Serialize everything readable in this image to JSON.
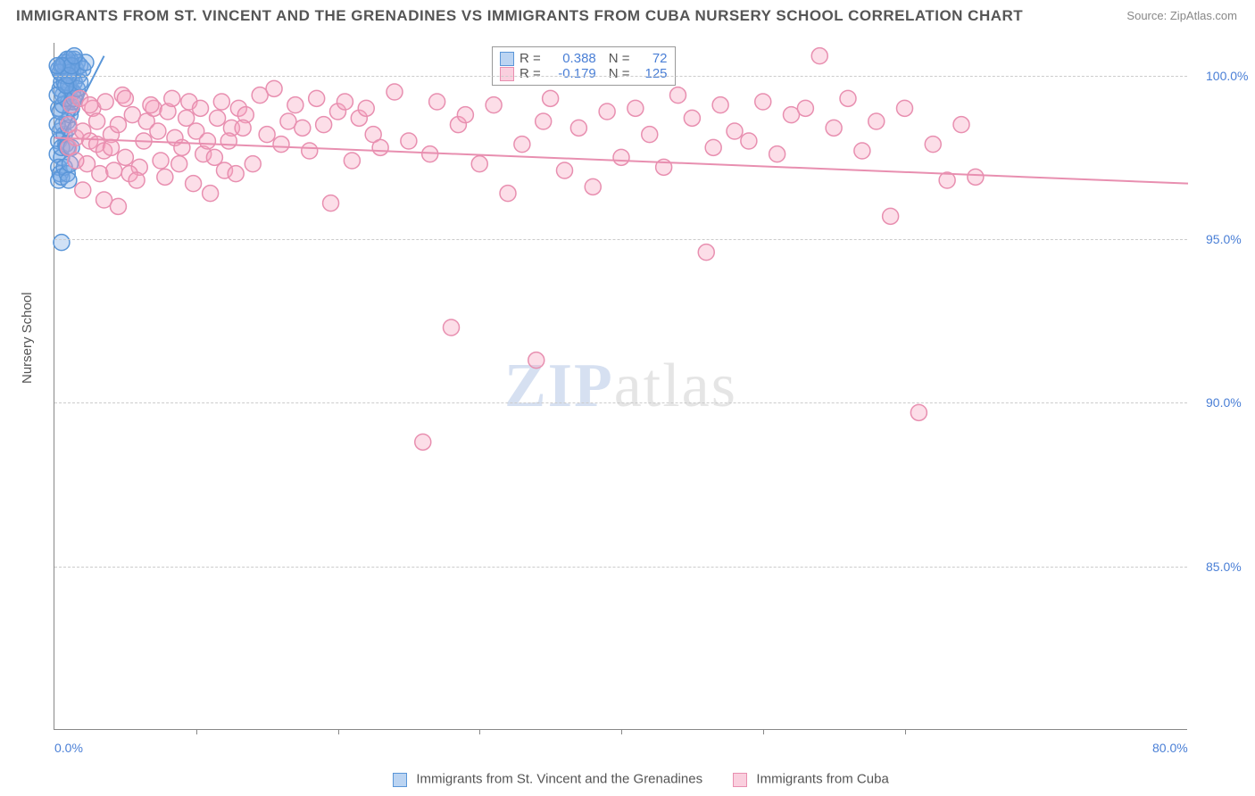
{
  "title": "IMMIGRANTS FROM ST. VINCENT AND THE GRENADINES VS IMMIGRANTS FROM CUBA NURSERY SCHOOL CORRELATION CHART",
  "source_label": "Source:",
  "source_value": "ZipAtlas.com",
  "ylabel": "Nursery School",
  "watermark": {
    "zip": "ZIP",
    "rest": "atlas"
  },
  "chart": {
    "type": "scatter",
    "background_color": "#ffffff",
    "grid_color": "#cccccc",
    "axis_color": "#888888",
    "xlim": [
      0,
      80
    ],
    "ylim": [
      80,
      101
    ],
    "xticks": [
      0,
      80
    ],
    "xtick_labels": [
      "0.0%",
      "80.0%"
    ],
    "xtick_marks": [
      10,
      20,
      30,
      40,
      50,
      60
    ],
    "yticks": [
      85,
      90,
      95,
      100
    ],
    "ytick_labels": [
      "85.0%",
      "90.0%",
      "95.0%",
      "100.0%"
    ],
    "marker_radius": 9,
    "marker_stroke_width": 1.5,
    "trend_line_width": 2
  },
  "series": [
    {
      "id": "svg",
      "label": "Immigrants from St. Vincent and the Grenadines",
      "fill_color": "rgba(120,170,230,0.35)",
      "stroke_color": "#5a96d8",
      "R": "0.388",
      "N": "72",
      "trend": {
        "x1": 0.2,
        "y1": 97.8,
        "x2": 3.5,
        "y2": 100.6
      },
      "points": [
        [
          0.2,
          97.6
        ],
        [
          0.3,
          98.0
        ],
        [
          0.4,
          98.3
        ],
        [
          0.5,
          97.5
        ],
        [
          0.3,
          99.0
        ],
        [
          0.6,
          99.4
        ],
        [
          0.7,
          100.0
        ],
        [
          0.8,
          100.2
        ],
        [
          0.9,
          100.4
        ],
        [
          1.0,
          100.3
        ],
        [
          1.1,
          100.5
        ],
        [
          1.2,
          100.4
        ],
        [
          0.4,
          99.6
        ],
        [
          0.5,
          99.8
        ],
        [
          0.6,
          98.5
        ],
        [
          0.7,
          98.2
        ],
        [
          0.8,
          97.9
        ],
        [
          0.9,
          98.6
        ],
        [
          1.0,
          99.2
        ],
        [
          1.1,
          99.6
        ],
        [
          1.2,
          99.0
        ],
        [
          1.3,
          100.1
        ],
        [
          1.4,
          100.5
        ],
        [
          1.5,
          100.2
        ],
        [
          0.2,
          98.5
        ],
        [
          0.3,
          97.2
        ],
        [
          0.4,
          97.0
        ],
        [
          0.5,
          97.8
        ],
        [
          0.6,
          100.0
        ],
        [
          0.7,
          99.8
        ],
        [
          0.8,
          100.3
        ],
        [
          0.9,
          97.8
        ],
        [
          1.0,
          98.4
        ],
        [
          1.1,
          98.8
        ],
        [
          1.2,
          97.8
        ],
        [
          1.3,
          99.2
        ],
        [
          1.4,
          99.8
        ],
        [
          1.5,
          99.4
        ],
        [
          1.6,
          100.4
        ],
        [
          1.7,
          100.0
        ],
        [
          1.8,
          100.3
        ],
        [
          0.3,
          96.8
        ],
        [
          0.5,
          96.9
        ],
        [
          0.7,
          97.2
        ],
        [
          0.9,
          97.0
        ],
        [
          1.0,
          96.8
        ],
        [
          1.1,
          97.3
        ],
        [
          0.3,
          100.2
        ],
        [
          0.5,
          100.3
        ],
        [
          0.7,
          100.4
        ],
        [
          0.9,
          100.5
        ],
        [
          1.1,
          100.1
        ],
        [
          1.3,
          99.5
        ],
        [
          0.5,
          94.9
        ],
        [
          0.4,
          98.9
        ],
        [
          0.6,
          99.1
        ],
        [
          0.8,
          99.3
        ],
        [
          1.0,
          99.7
        ],
        [
          1.2,
          99.9
        ],
        [
          1.4,
          99.3
        ],
        [
          1.6,
          99.6
        ],
        [
          1.8,
          99.8
        ],
        [
          2.0,
          100.2
        ],
        [
          2.2,
          100.4
        ],
        [
          0.2,
          99.4
        ],
        [
          0.4,
          100.1
        ],
        [
          0.6,
          100.3
        ],
        [
          0.8,
          99.7
        ],
        [
          1.0,
          100.0
        ],
        [
          1.2,
          100.3
        ],
        [
          1.4,
          100.6
        ],
        [
          0.2,
          100.3
        ]
      ]
    },
    {
      "id": "cuba",
      "label": "Immigrants from Cuba",
      "fill_color": "rgba(245,160,190,0.35)",
      "stroke_color": "#e88fb0",
      "R": "-0.179",
      "N": "125",
      "trend": {
        "x1": 0,
        "y1": 98.1,
        "x2": 80,
        "y2": 96.7
      },
      "points": [
        [
          1.0,
          97.8
        ],
        [
          1.5,
          98.1
        ],
        [
          2.0,
          98.3
        ],
        [
          2.5,
          98.0
        ],
        [
          3.0,
          97.9
        ],
        [
          3.5,
          97.7
        ],
        [
          4.0,
          98.2
        ],
        [
          4.5,
          98.5
        ],
        [
          5.0,
          97.5
        ],
        [
          5.5,
          98.8
        ],
        [
          6.0,
          97.2
        ],
        [
          6.5,
          98.6
        ],
        [
          7.0,
          99.0
        ],
        [
          7.5,
          97.4
        ],
        [
          8.0,
          98.9
        ],
        [
          8.5,
          98.1
        ],
        [
          9.0,
          97.8
        ],
        [
          9.5,
          99.2
        ],
        [
          10.0,
          98.3
        ],
        [
          10.5,
          97.6
        ],
        [
          11.0,
          96.4
        ],
        [
          11.5,
          98.7
        ],
        [
          12.0,
          97.1
        ],
        [
          12.5,
          98.4
        ],
        [
          13.0,
          99.0
        ],
        [
          13.5,
          98.8
        ],
        [
          14.0,
          97.3
        ],
        [
          14.5,
          99.4
        ],
        [
          15.0,
          98.2
        ],
        [
          15.5,
          99.6
        ],
        [
          16.0,
          97.9
        ],
        [
          16.5,
          98.6
        ],
        [
          17.0,
          99.1
        ],
        [
          17.5,
          98.4
        ],
        [
          18.0,
          97.7
        ],
        [
          18.5,
          99.3
        ],
        [
          19.0,
          98.5
        ],
        [
          19.5,
          96.1
        ],
        [
          20.0,
          98.9
        ],
        [
          20.5,
          99.2
        ],
        [
          21.0,
          97.4
        ],
        [
          21.5,
          98.7
        ],
        [
          22.0,
          99.0
        ],
        [
          22.5,
          98.2
        ],
        [
          23.0,
          97.8
        ],
        [
          24.0,
          99.5
        ],
        [
          25.0,
          98.0
        ],
        [
          26.0,
          88.8
        ],
        [
          26.5,
          97.6
        ],
        [
          27.0,
          99.2
        ],
        [
          28.0,
          92.3
        ],
        [
          28.5,
          98.5
        ],
        [
          29.0,
          98.8
        ],
        [
          30.0,
          97.3
        ],
        [
          31.0,
          99.1
        ],
        [
          32.0,
          96.4
        ],
        [
          33.0,
          97.9
        ],
        [
          34.0,
          91.3
        ],
        [
          34.5,
          98.6
        ],
        [
          35.0,
          99.3
        ],
        [
          36.0,
          97.1
        ],
        [
          37.0,
          98.4
        ],
        [
          38.0,
          96.6
        ],
        [
          39.0,
          98.9
        ],
        [
          40.0,
          97.5
        ],
        [
          41.0,
          99.0
        ],
        [
          42.0,
          98.2
        ],
        [
          43.0,
          97.2
        ],
        [
          44.0,
          99.4
        ],
        [
          45.0,
          98.7
        ],
        [
          46.0,
          94.6
        ],
        [
          46.5,
          97.8
        ],
        [
          47.0,
          99.1
        ],
        [
          48.0,
          98.3
        ],
        [
          49.0,
          98.0
        ],
        [
          50.0,
          99.2
        ],
        [
          51.0,
          97.6
        ],
        [
          52.0,
          98.8
        ],
        [
          53.0,
          99.0
        ],
        [
          54.0,
          100.6
        ],
        [
          55.0,
          98.4
        ],
        [
          56.0,
          99.3
        ],
        [
          57.0,
          97.7
        ],
        [
          58.0,
          98.6
        ],
        [
          59.0,
          95.7
        ],
        [
          60.0,
          99.0
        ],
        [
          61.0,
          89.7
        ],
        [
          62.0,
          97.9
        ],
        [
          63.0,
          96.8
        ],
        [
          64.0,
          98.5
        ],
        [
          65.0,
          96.9
        ],
        [
          1.2,
          99.1
        ],
        [
          1.8,
          99.3
        ],
        [
          2.3,
          97.3
        ],
        [
          2.7,
          99.0
        ],
        [
          3.2,
          97.0
        ],
        [
          3.6,
          99.2
        ],
        [
          4.2,
          97.1
        ],
        [
          4.8,
          99.4
        ],
        [
          5.3,
          97.0
        ],
        [
          5.8,
          96.8
        ],
        [
          6.3,
          98.0
        ],
        [
          6.8,
          99.1
        ],
        [
          7.3,
          98.3
        ],
        [
          7.8,
          96.9
        ],
        [
          8.3,
          99.3
        ],
        [
          8.8,
          97.3
        ],
        [
          9.3,
          98.7
        ],
        [
          9.8,
          96.7
        ],
        [
          10.3,
          99.0
        ],
        [
          10.8,
          98.0
        ],
        [
          11.3,
          97.5
        ],
        [
          11.8,
          99.2
        ],
        [
          12.3,
          98.0
        ],
        [
          12.8,
          97.0
        ],
        [
          13.3,
          98.4
        ],
        [
          1.0,
          98.5
        ],
        [
          1.5,
          97.4
        ],
        [
          2.0,
          96.5
        ],
        [
          2.5,
          99.1
        ],
        [
          3.0,
          98.6
        ],
        [
          3.5,
          96.2
        ],
        [
          4.0,
          97.8
        ],
        [
          4.5,
          96.0
        ],
        [
          5.0,
          99.3
        ]
      ]
    }
  ],
  "legend_bottom": {
    "items": [
      {
        "label": "Immigrants from St. Vincent and the Grenadines",
        "fill": "rgba(120,170,230,0.5)",
        "border": "#5a96d8"
      },
      {
        "label": "Immigrants from Cuba",
        "fill": "rgba(245,160,190,0.5)",
        "border": "#e88fb0"
      }
    ]
  }
}
